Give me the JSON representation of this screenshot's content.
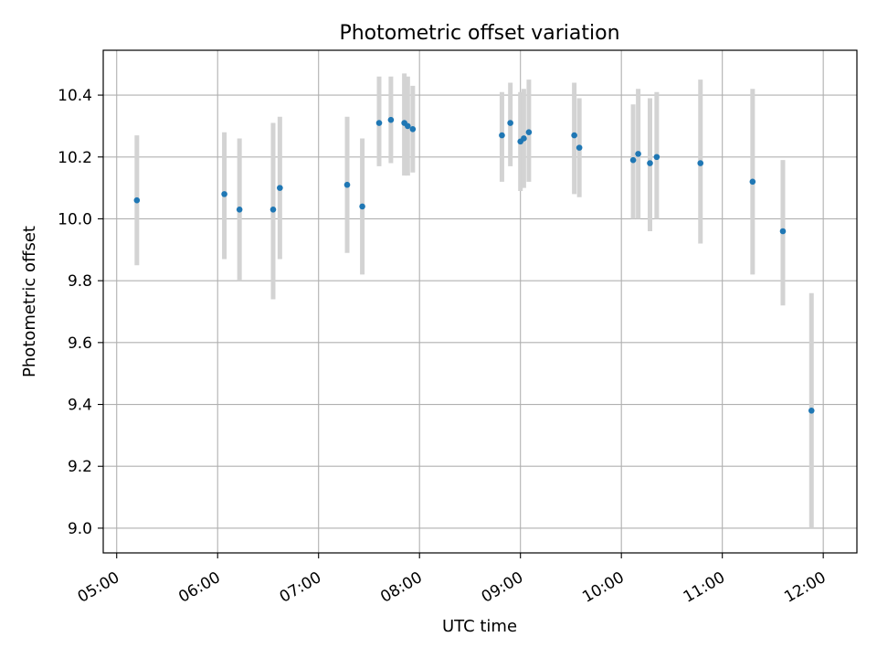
{
  "chart_data": {
    "type": "scatter",
    "title": "Photometric offset variation",
    "xlabel": "UTC time",
    "ylabel": "Photometric offset",
    "xlim": [
      "04:52",
      "12:20"
    ],
    "ylim": [
      8.92,
      10.545
    ],
    "x_ticks": [
      "05:00",
      "06:00",
      "07:00",
      "08:00",
      "09:00",
      "10:00",
      "11:00",
      "12:00"
    ],
    "y_ticks": [
      9.0,
      9.2,
      9.4,
      9.6,
      9.8,
      10.0,
      10.2,
      10.4
    ],
    "y_tick_labels": [
      "9.0",
      "9.2",
      "9.4",
      "9.6",
      "9.8",
      "10.0",
      "10.2",
      "10.4"
    ],
    "grid": true,
    "marker_color": "#1f77b4",
    "errorbar_color": "#d3d3d3",
    "series": [
      {
        "points": [
          {
            "x": "05:12",
            "y": 10.06,
            "lo": 9.85,
            "hi": 10.27
          },
          {
            "x": "06:04",
            "y": 10.08,
            "lo": 9.87,
            "hi": 10.28
          },
          {
            "x": "06:13",
            "y": 10.03,
            "lo": 9.8,
            "hi": 10.26
          },
          {
            "x": "06:33",
            "y": 10.03,
            "lo": 9.74,
            "hi": 10.31
          },
          {
            "x": "06:37",
            "y": 10.1,
            "lo": 9.87,
            "hi": 10.33
          },
          {
            "x": "07:17",
            "y": 10.11,
            "lo": 9.89,
            "hi": 10.33
          },
          {
            "x": "07:26",
            "y": 10.04,
            "lo": 9.82,
            "hi": 10.26
          },
          {
            "x": "07:36",
            "y": 10.31,
            "lo": 10.17,
            "hi": 10.46
          },
          {
            "x": "07:43",
            "y": 10.32,
            "lo": 10.18,
            "hi": 10.46
          },
          {
            "x": "07:51",
            "y": 10.31,
            "lo": 10.14,
            "hi": 10.47
          },
          {
            "x": "07:53",
            "y": 10.3,
            "lo": 10.14,
            "hi": 10.46
          },
          {
            "x": "07:56",
            "y": 10.29,
            "lo": 10.15,
            "hi": 10.43
          },
          {
            "x": "08:49",
            "y": 10.27,
            "lo": 10.12,
            "hi": 10.41
          },
          {
            "x": "08:54",
            "y": 10.31,
            "lo": 10.17,
            "hi": 10.44
          },
          {
            "x": "09:00",
            "y": 10.25,
            "lo": 10.09,
            "hi": 10.41
          },
          {
            "x": "09:02",
            "y": 10.26,
            "lo": 10.1,
            "hi": 10.42
          },
          {
            "x": "09:05",
            "y": 10.28,
            "lo": 10.12,
            "hi": 10.45
          },
          {
            "x": "09:32",
            "y": 10.27,
            "lo": 10.08,
            "hi": 10.44
          },
          {
            "x": "09:35",
            "y": 10.23,
            "lo": 10.07,
            "hi": 10.39
          },
          {
            "x": "10:07",
            "y": 10.19,
            "lo": 10.0,
            "hi": 10.37
          },
          {
            "x": "10:10",
            "y": 10.21,
            "lo": 10.0,
            "hi": 10.42
          },
          {
            "x": "10:17",
            "y": 10.18,
            "lo": 9.96,
            "hi": 10.39
          },
          {
            "x": "10:21",
            "y": 10.2,
            "lo": 10.0,
            "hi": 10.41
          },
          {
            "x": "10:47",
            "y": 10.18,
            "lo": 9.92,
            "hi": 10.45
          },
          {
            "x": "11:18",
            "y": 10.12,
            "lo": 9.82,
            "hi": 10.42
          },
          {
            "x": "11:36",
            "y": 9.96,
            "lo": 9.72,
            "hi": 10.19
          },
          {
            "x": "11:53",
            "y": 9.38,
            "lo": 9.0,
            "hi": 9.76
          }
        ]
      }
    ]
  }
}
